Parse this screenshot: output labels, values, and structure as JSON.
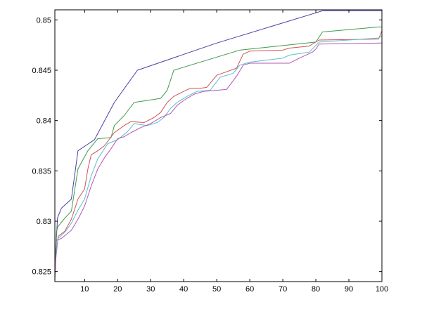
{
  "chart_data": {
    "type": "line",
    "xlim": [
      1,
      100
    ],
    "ylim": [
      0.824,
      0.851
    ],
    "xticks": [
      10,
      20,
      30,
      40,
      50,
      60,
      70,
      80,
      90,
      100
    ],
    "yticks": [
      0.825,
      0.83,
      0.835,
      0.84,
      0.845,
      0.85
    ],
    "xtick_labels": [
      "10",
      "20",
      "30",
      "40",
      "50",
      "60",
      "70",
      "80",
      "90",
      "100"
    ],
    "ytick_labels": [
      "0.825",
      "0.83",
      "0.835",
      "0.84",
      "0.845",
      "0.85"
    ],
    "grid": false,
    "legend": null,
    "series": [
      {
        "color": "#4b3fa6",
        "points": [
          [
            1,
            0.8255
          ],
          [
            1.8,
            0.8303
          ],
          [
            2,
            0.8305
          ],
          [
            3,
            0.8313
          ],
          [
            6,
            0.8322
          ],
          [
            8,
            0.837
          ],
          [
            13,
            0.8381
          ],
          [
            19,
            0.8418
          ],
          [
            26,
            0.845
          ],
          [
            50,
            0.8477
          ],
          [
            82,
            0.8509
          ],
          [
            100,
            0.8509
          ]
        ]
      },
      {
        "color": "#3f9a4a",
        "points": [
          [
            1,
            0.8255
          ],
          [
            1.5,
            0.829
          ],
          [
            2,
            0.8295
          ],
          [
            4,
            0.8303
          ],
          [
            6,
            0.831
          ],
          [
            8,
            0.8352
          ],
          [
            11,
            0.837
          ],
          [
            14,
            0.8382
          ],
          [
            18,
            0.8383
          ],
          [
            19,
            0.8395
          ],
          [
            22,
            0.8405
          ],
          [
            25,
            0.8418
          ],
          [
            33,
            0.8422
          ],
          [
            35,
            0.843
          ],
          [
            37,
            0.845
          ],
          [
            57,
            0.847
          ],
          [
            80,
            0.8478
          ],
          [
            82,
            0.8488
          ],
          [
            99,
            0.8493
          ],
          [
            100,
            0.8493
          ]
        ]
      },
      {
        "color": "#cc5555",
        "points": [
          [
            1,
            0.8254
          ],
          [
            2,
            0.8285
          ],
          [
            4,
            0.829
          ],
          [
            6,
            0.8302
          ],
          [
            8,
            0.8322
          ],
          [
            10,
            0.8332
          ],
          [
            11,
            0.8352
          ],
          [
            12,
            0.8366
          ],
          [
            14,
            0.837
          ],
          [
            16,
            0.8375
          ],
          [
            19,
            0.8388
          ],
          [
            22,
            0.8395
          ],
          [
            24,
            0.8399
          ],
          [
            28,
            0.8398
          ],
          [
            31,
            0.8403
          ],
          [
            33,
            0.8408
          ],
          [
            35,
            0.8418
          ],
          [
            37,
            0.8424
          ],
          [
            40,
            0.8429
          ],
          [
            42,
            0.8432
          ],
          [
            45,
            0.8432
          ],
          [
            47,
            0.8433
          ],
          [
            50,
            0.8445
          ],
          [
            56,
            0.8452
          ],
          [
            58,
            0.8466
          ],
          [
            60,
            0.8469
          ],
          [
            70,
            0.847
          ],
          [
            72,
            0.8472
          ],
          [
            78,
            0.8474
          ],
          [
            81,
            0.848
          ],
          [
            99,
            0.8481
          ],
          [
            100,
            0.8489
          ]
        ]
      },
      {
        "color": "#5bbfc9",
        "points": [
          [
            1,
            0.8255
          ],
          [
            2,
            0.8283
          ],
          [
            4,
            0.8289
          ],
          [
            6,
            0.8298
          ],
          [
            8,
            0.8311
          ],
          [
            10,
            0.8322
          ],
          [
            12,
            0.8345
          ],
          [
            14,
            0.8362
          ],
          [
            17,
            0.8377
          ],
          [
            20,
            0.8381
          ],
          [
            23,
            0.8389
          ],
          [
            25,
            0.8397
          ],
          [
            29,
            0.8395
          ],
          [
            32,
            0.8398
          ],
          [
            34,
            0.8403
          ],
          [
            36,
            0.8412
          ],
          [
            38,
            0.8418
          ],
          [
            41,
            0.8424
          ],
          [
            44,
            0.8429
          ],
          [
            48,
            0.843
          ],
          [
            51,
            0.8443
          ],
          [
            55,
            0.8447
          ],
          [
            57,
            0.8455
          ],
          [
            60,
            0.8458
          ],
          [
            70,
            0.8462
          ],
          [
            72,
            0.8465
          ],
          [
            78,
            0.8468
          ],
          [
            81,
            0.8478
          ],
          [
            99,
            0.8482
          ],
          [
            100,
            0.8484
          ]
        ]
      },
      {
        "color": "#b554b8",
        "points": [
          [
            1,
            0.824
          ],
          [
            1.5,
            0.8281
          ],
          [
            3,
            0.8283
          ],
          [
            6,
            0.8291
          ],
          [
            8,
            0.8302
          ],
          [
            10,
            0.8315
          ],
          [
            12,
            0.8335
          ],
          [
            14,
            0.8352
          ],
          [
            16,
            0.8363
          ],
          [
            18,
            0.8372
          ],
          [
            20,
            0.8382
          ],
          [
            22,
            0.8384
          ],
          [
            24,
            0.8388
          ],
          [
            27,
            0.8393
          ],
          [
            30,
            0.8397
          ],
          [
            33,
            0.8403
          ],
          [
            36,
            0.8407
          ],
          [
            38,
            0.8415
          ],
          [
            40,
            0.842
          ],
          [
            43,
            0.8426
          ],
          [
            46,
            0.8429
          ],
          [
            50,
            0.843
          ],
          [
            53,
            0.8431
          ],
          [
            56,
            0.8444
          ],
          [
            58,
            0.8455
          ],
          [
            60,
            0.8457
          ],
          [
            72,
            0.8457
          ],
          [
            75,
            0.8462
          ],
          [
            79,
            0.8468
          ],
          [
            80,
            0.8471
          ],
          [
            81,
            0.8476
          ],
          [
            100,
            0.8477
          ]
        ]
      }
    ]
  }
}
